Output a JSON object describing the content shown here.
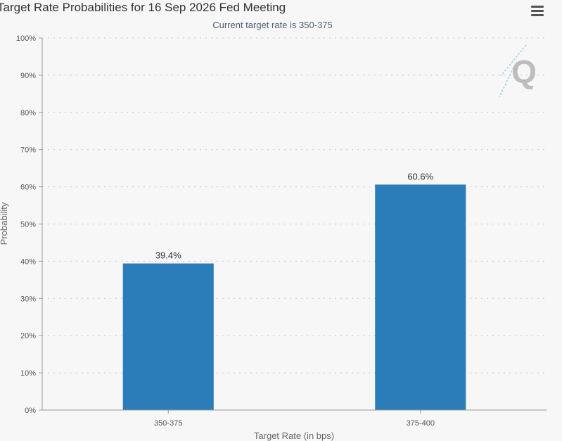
{
  "header": {
    "title": "Target Rate Probabilities for 16 Sep 2026 Fed Meeting",
    "subtitle": "Current target rate is 350-375",
    "menu_icon": "hamburger-menu-icon"
  },
  "watermark": {
    "letter": "Q",
    "icon": "quikstrike-logo-icon"
  },
  "colors": {
    "bar": "#2a7db8",
    "background": "#f7f7f7",
    "gridline": "#c8c8c8",
    "subtitle": "#4b5c78"
  },
  "chart_data": {
    "type": "bar",
    "title": "Target Rate Probabilities for 16 Sep 2026 Fed Meeting",
    "subtitle": "Current target rate is 350-375",
    "categories": [
      "350-375",
      "375-400"
    ],
    "values": [
      39.4,
      60.6
    ],
    "data_labels": [
      "39.4%",
      "60.6%"
    ],
    "xlabel": "Target Rate (in bps)",
    "ylabel": "Probability",
    "ylim": [
      0,
      100
    ],
    "yticks": [
      "0%",
      "10%",
      "20%",
      "30%",
      "40%",
      "50%",
      "60%",
      "70%",
      "80%",
      "90%",
      "100%"
    ],
    "grid": true,
    "legend": "none"
  }
}
